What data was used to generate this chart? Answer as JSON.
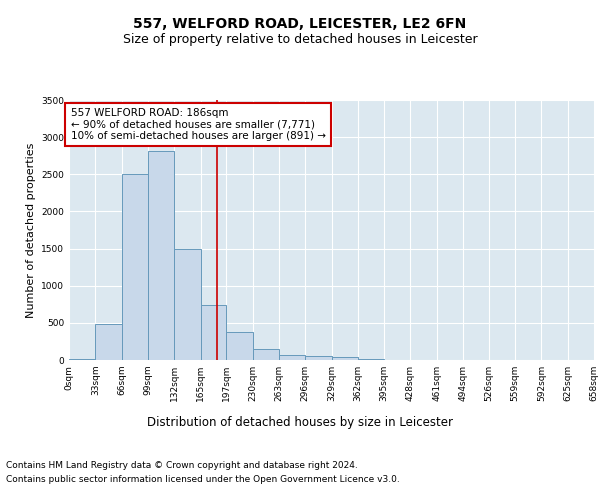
{
  "title": "557, WELFORD ROAD, LEICESTER, LE2 6FN",
  "subtitle": "Size of property relative to detached houses in Leicester",
  "xlabel": "Distribution of detached houses by size in Leicester",
  "ylabel": "Number of detached properties",
  "bar_values": [
    20,
    480,
    2500,
    2820,
    1500,
    740,
    380,
    150,
    70,
    50,
    35,
    15,
    5,
    2,
    1,
    0,
    0,
    0,
    0,
    0
  ],
  "bin_edges": [
    0,
    33,
    66,
    99,
    132,
    165,
    197,
    230,
    263,
    296,
    329,
    362,
    395,
    428,
    461,
    494,
    526,
    559,
    592,
    625,
    658
  ],
  "tick_labels": [
    "0sqm",
    "33sqm",
    "66sqm",
    "99sqm",
    "132sqm",
    "165sqm",
    "197sqm",
    "230sqm",
    "263sqm",
    "296sqm",
    "329sqm",
    "362sqm",
    "395sqm",
    "428sqm",
    "461sqm",
    "494sqm",
    "526sqm",
    "559sqm",
    "592sqm",
    "625sqm",
    "658sqm"
  ],
  "bar_color": "#c8d8ea",
  "bar_edge_color": "#6699bb",
  "property_line_x": 186,
  "property_line_color": "#cc0000",
  "annotation_text": "557 WELFORD ROAD: 186sqm\n← 90% of detached houses are smaller (7,771)\n10% of semi-detached houses are larger (891) →",
  "annotation_box_color": "#ffffff",
  "annotation_box_edge_color": "#cc0000",
  "ylim": [
    0,
    3500
  ],
  "yticks": [
    0,
    500,
    1000,
    1500,
    2000,
    2500,
    3000,
    3500
  ],
  "plot_background_color": "#dce8f0",
  "fig_background_color": "#ffffff",
  "footer_line1": "Contains HM Land Registry data © Crown copyright and database right 2024.",
  "footer_line2": "Contains public sector information licensed under the Open Government Licence v3.0.",
  "title_fontsize": 10,
  "subtitle_fontsize": 9,
  "annotation_fontsize": 7.5,
  "footer_fontsize": 6.5,
  "ylabel_fontsize": 8,
  "xlabel_fontsize": 8.5,
  "tick_fontsize": 6.5
}
